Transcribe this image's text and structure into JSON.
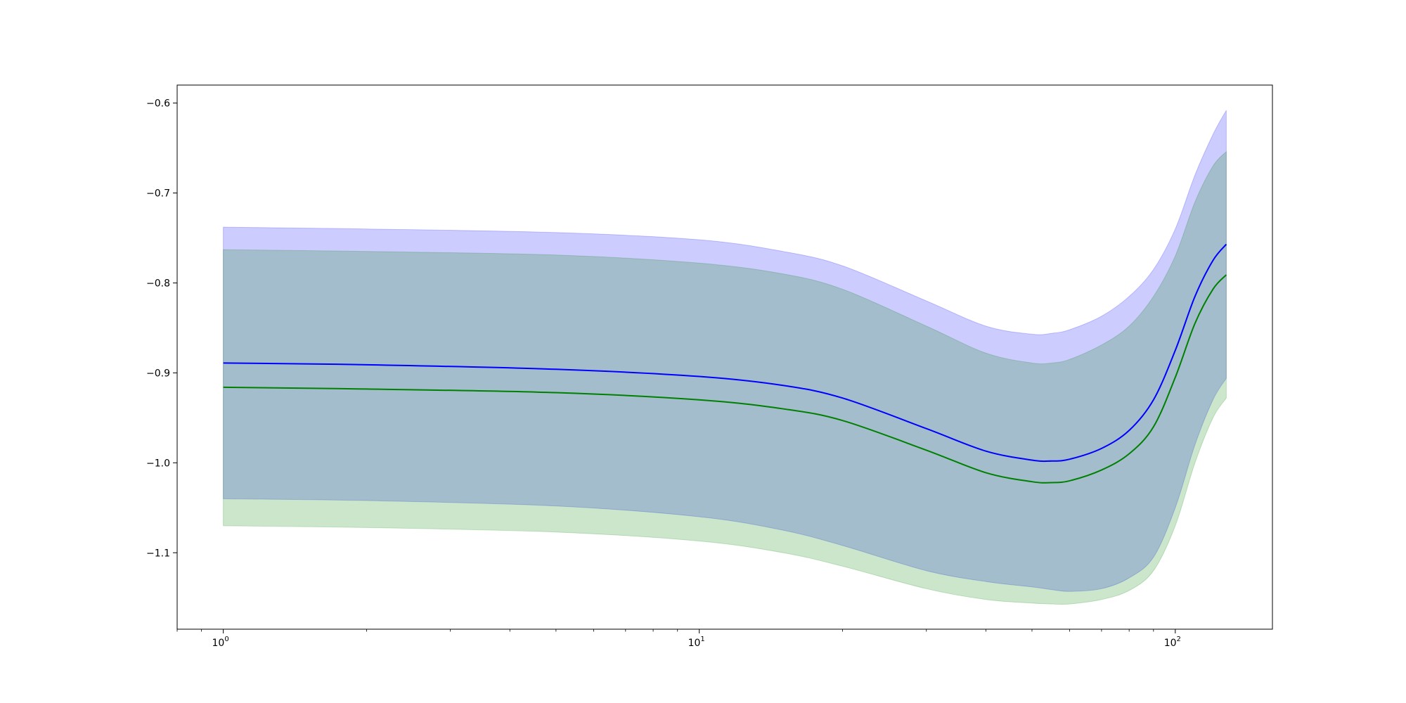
{
  "chart_data": {
    "type": "area",
    "x_scale": "log",
    "xlim": [
      0.8,
      160
    ],
    "ylim": [
      -1.185,
      -0.58
    ],
    "x_ticks": [
      {
        "value": 1,
        "base": "10",
        "exp": "0"
      },
      {
        "value": 10,
        "base": "10",
        "exp": "1"
      },
      {
        "value": 100,
        "base": "10",
        "exp": "2"
      }
    ],
    "y_ticks": [
      {
        "value": -0.6,
        "label": "−0.6"
      },
      {
        "value": -0.7,
        "label": "−0.7"
      },
      {
        "value": -0.8,
        "label": "−0.8"
      },
      {
        "value": -0.9,
        "label": "−0.9"
      },
      {
        "value": -1.0,
        "label": "−1.0"
      },
      {
        "value": -1.1,
        "label": "−1.1"
      }
    ],
    "grid": false,
    "x": [
      1,
      2,
      5,
      10,
      15,
      20,
      30,
      40,
      50,
      55,
      60,
      70,
      80,
      90,
      100,
      110,
      120,
      128
    ],
    "series": [
      {
        "color": "#0000ff",
        "band_color": "#0000ff",
        "band_opacity": 0.2,
        "values": [
          -0.889,
          -0.891,
          -0.896,
          -0.904,
          -0.914,
          -0.928,
          -0.962,
          -0.987,
          -0.997,
          -0.998,
          -0.996,
          -0.984,
          -0.964,
          -0.93,
          -0.875,
          -0.815,
          -0.775,
          -0.757
        ],
        "upper": [
          -0.738,
          -0.74,
          -0.744,
          -0.752,
          -0.765,
          -0.781,
          -0.82,
          -0.848,
          -0.857,
          -0.856,
          -0.852,
          -0.837,
          -0.815,
          -0.785,
          -0.74,
          -0.68,
          -0.635,
          -0.608
        ],
        "lower": [
          -1.04,
          -1.042,
          -1.048,
          -1.06,
          -1.075,
          -1.092,
          -1.12,
          -1.132,
          -1.138,
          -1.141,
          -1.143,
          -1.14,
          -1.128,
          -1.105,
          -1.05,
          -0.98,
          -0.93,
          -0.906
        ]
      },
      {
        "color": "#008000",
        "band_color": "#008000",
        "band_opacity": 0.2,
        "values": [
          -0.916,
          -0.918,
          -0.922,
          -0.93,
          -0.94,
          -0.953,
          -0.986,
          -1.011,
          -1.021,
          -1.022,
          -1.02,
          -1.008,
          -0.99,
          -0.96,
          -0.905,
          -0.845,
          -0.807,
          -0.791
        ],
        "upper": [
          -0.763,
          -0.765,
          -0.769,
          -0.778,
          -0.79,
          -0.807,
          -0.848,
          -0.878,
          -0.889,
          -0.889,
          -0.885,
          -0.869,
          -0.848,
          -0.815,
          -0.77,
          -0.71,
          -0.67,
          -0.654
        ],
        "lower": [
          -1.07,
          -1.072,
          -1.077,
          -1.087,
          -1.1,
          -1.115,
          -1.14,
          -1.152,
          -1.156,
          -1.157,
          -1.157,
          -1.152,
          -1.142,
          -1.12,
          -1.07,
          -1.0,
          -0.95,
          -0.928
        ]
      }
    ]
  }
}
